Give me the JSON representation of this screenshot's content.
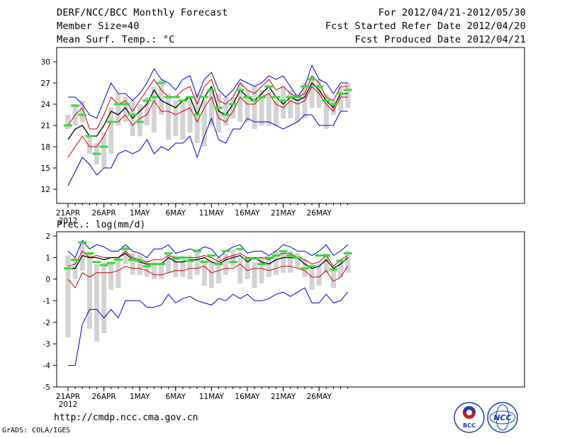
{
  "header": {
    "title": "DERF/NCC/BCC Monthly Forecast",
    "member_size": "Member Size=40",
    "variable": "Mean Surf. Temp.: °C",
    "forecast_period": "For 2012/04/21-2012/05/30",
    "start_date": "Fcst Started Refer Date 2012/04/20",
    "produced_date": "Fcst Produced Date 2012/04/21"
  },
  "footer": {
    "url": "http://cmdp.ncc.cma.gov.cn",
    "credit": "GrADS: COLA/IGES",
    "logo_left": "BCC",
    "logo_right": "NCC"
  },
  "colors": {
    "ensemble_mean": "#000000",
    "std_band": "#cc0000",
    "min_max": "#0000cc",
    "observed_box": "#d3d3d6",
    "member_mark": "#33dd33"
  },
  "chart_data": [
    {
      "type": "line",
      "title": "",
      "ylabel": "Mean Surf. Temp.: °C",
      "ylim": [
        10,
        32
      ],
      "yticks": [
        12,
        15,
        18,
        21,
        24,
        27,
        30
      ],
      "x_day_index": [
        0,
        1,
        2,
        3,
        4,
        5,
        6,
        7,
        8,
        9,
        10,
        11,
        12,
        13,
        14,
        15,
        16,
        17,
        18,
        19,
        20,
        21,
        22,
        23,
        24,
        25,
        26,
        27,
        28,
        29,
        30,
        31,
        32,
        33,
        34,
        35,
        36,
        37,
        38,
        39
      ],
      "xticks": [
        {
          "day": 0,
          "label": "21APR"
        },
        {
          "day": 5,
          "label": "26APR"
        },
        {
          "day": 10,
          "label": "1MAY"
        },
        {
          "day": 15,
          "label": "6MAY"
        },
        {
          "day": 20,
          "label": "11MAY"
        },
        {
          "day": 25,
          "label": "16MAY"
        },
        {
          "day": 30,
          "label": "21MAY"
        },
        {
          "day": 35,
          "label": "26MAY"
        }
      ],
      "year_label": "2012",
      "series": [
        {
          "name": "max",
          "role": "max",
          "values": [
            25,
            25,
            24,
            22.5,
            22,
            24.5,
            27,
            25.5,
            25.5,
            24.5,
            25.5,
            27,
            29,
            27.5,
            27,
            26,
            27.5,
            28,
            25,
            27.5,
            28.5,
            26,
            25,
            26,
            27.5,
            27,
            26.5,
            27,
            28,
            27.5,
            28,
            26.5,
            25,
            26.5,
            29.5,
            27.5,
            27,
            25.5,
            27,
            27
          ]
        },
        {
          "name": "mean+sd",
          "role": "upper",
          "values": [
            21,
            22.5,
            23.5,
            20.5,
            20.5,
            22.5,
            25,
            24,
            24.5,
            23,
            24.5,
            26,
            27.5,
            26,
            25,
            25,
            26,
            26.5,
            24,
            26.5,
            27.5,
            24.5,
            24,
            25,
            27,
            26,
            25.5,
            26.5,
            27.5,
            26,
            26.5,
            25.5,
            25,
            25.5,
            28,
            27,
            25,
            24.5,
            26.5,
            26.5
          ]
        },
        {
          "name": "ensemble mean",
          "role": "mean",
          "values": [
            19,
            20.5,
            21,
            19.5,
            19.5,
            21,
            23,
            22.5,
            23.5,
            22,
            23,
            24,
            26,
            24.5,
            24,
            23.5,
            24.5,
            25,
            22.5,
            25,
            26.5,
            23,
            22.5,
            24,
            26,
            25,
            24.5,
            25.5,
            26.5,
            25,
            24,
            25,
            24.5,
            25,
            27,
            26,
            24.5,
            23.5,
            25.5,
            25.5
          ]
        },
        {
          "name": "mean-sd",
          "role": "lower",
          "values": [
            16.5,
            18,
            19.5,
            18,
            18,
            19.5,
            21.5,
            21.5,
            22.5,
            21,
            22,
            22.5,
            24.5,
            23,
            23,
            22.5,
            23,
            23.5,
            21.5,
            23.5,
            25,
            22,
            21.5,
            23,
            25,
            24,
            24,
            25,
            25.5,
            24,
            23.5,
            24.5,
            24,
            24.5,
            26.5,
            25.5,
            24,
            23,
            25,
            25
          ]
        },
        {
          "name": "min",
          "role": "min",
          "values": [
            12.5,
            14.5,
            16.5,
            15.5,
            14,
            15,
            15,
            17,
            17.5,
            17,
            17.5,
            19,
            17,
            18,
            17.5,
            18.5,
            18.5,
            19.5,
            16.5,
            19.5,
            22,
            19,
            18.5,
            20.5,
            20.5,
            22,
            21.5,
            21.5,
            21.5,
            21,
            20.5,
            21,
            21.5,
            22.5,
            22.5,
            21,
            21,
            21,
            23,
            23
          ]
        }
      ],
      "boxes": [
        {
          "low": 20.5,
          "high": 22.5
        },
        {
          "low": 21,
          "high": 24
        },
        {
          "low": 21.5,
          "high": 24.5
        },
        {
          "low": 17,
          "high": 19.5
        },
        {
          "low": 15.5,
          "high": 18.5
        },
        {
          "low": 15,
          "high": 20
        },
        {
          "low": 17,
          "high": 23.5
        },
        {
          "low": 21,
          "high": 25.5
        },
        {
          "low": 21.5,
          "high": 25
        },
        {
          "low": 19.5,
          "high": 24.5
        },
        {
          "low": 19.5,
          "high": 24
        },
        {
          "low": 21,
          "high": 25
        },
        {
          "low": 20,
          "high": 26.5
        },
        {
          "low": 22.5,
          "high": 27.5
        },
        {
          "low": 19,
          "high": 25.5
        },
        {
          "low": 19.5,
          "high": 24.5
        },
        {
          "low": 19,
          "high": 24.5
        },
        {
          "low": 20,
          "high": 25
        },
        {
          "low": 18.5,
          "high": 25.5
        },
        {
          "low": 18,
          "high": 24.5
        },
        {
          "low": 21,
          "high": 26
        },
        {
          "low": 20,
          "high": 25.5
        },
        {
          "low": 21,
          "high": 25
        },
        {
          "low": 22,
          "high": 25
        },
        {
          "low": 21.5,
          "high": 27
        },
        {
          "low": 21.5,
          "high": 26
        },
        {
          "low": 20.5,
          "high": 26.5
        },
        {
          "low": 21,
          "high": 26
        },
        {
          "low": 21,
          "high": 26
        },
        {
          "low": 21,
          "high": 24.5
        },
        {
          "low": 22,
          "high": 26.5
        },
        {
          "low": 22,
          "high": 26
        },
        {
          "low": 21.5,
          "high": 25.5
        },
        {
          "low": 22,
          "high": 27
        },
        {
          "low": 23.5,
          "high": 28
        },
        {
          "low": 23.5,
          "high": 27.5
        },
        {
          "low": 20.5,
          "high": 25.5
        },
        {
          "low": 22.5,
          "high": 24.5
        },
        {
          "low": 23,
          "high": 26.5
        },
        {
          "low": 23.5,
          "high": 27
        }
      ],
      "marks": [
        21,
        23.8,
        22.5,
        19.5,
        17,
        18,
        21.5,
        24,
        24,
        22.5,
        21.5,
        24.5,
        25,
        27,
        25,
        25,
        24.5,
        25,
        22.5,
        25,
        26,
        23.5,
        22.5,
        24,
        26,
        25,
        24.5,
        25,
        26.5,
        25,
        24.5,
        25,
        25,
        26.5,
        27.5,
        26.5,
        24.5,
        24,
        25.5,
        26
      ]
    },
    {
      "type": "line",
      "title": "",
      "ylabel": "Prec.: log(mm/d)",
      "ylim": [
        -5,
        2.2
      ],
      "yticks": [
        -5,
        -4,
        -3,
        -2,
        -1,
        0,
        1,
        2
      ],
      "x_day_index": [
        0,
        1,
        2,
        3,
        4,
        5,
        6,
        7,
        8,
        9,
        10,
        11,
        12,
        13,
        14,
        15,
        16,
        17,
        18,
        19,
        20,
        21,
        22,
        23,
        24,
        25,
        26,
        27,
        28,
        29,
        30,
        31,
        32,
        33,
        34,
        35,
        36,
        37,
        38,
        39
      ],
      "xticks": [
        {
          "day": 0,
          "label": "21APR"
        },
        {
          "day": 5,
          "label": "26APR"
        },
        {
          "day": 10,
          "label": "1MAY"
        },
        {
          "day": 15,
          "label": "6MAY"
        },
        {
          "day": 20,
          "label": "11MAY"
        },
        {
          "day": 25,
          "label": "16MAY"
        },
        {
          "day": 30,
          "label": "21MAY"
        },
        {
          "day": 35,
          "label": "26MAY"
        }
      ],
      "year_label": "2012",
      "series": [
        {
          "name": "max",
          "role": "max",
          "values": [
            1.3,
            1,
            1.8,
            1.4,
            1.6,
            1.5,
            1.3,
            1.3,
            1.6,
            1.3,
            1.2,
            1,
            1.4,
            1.4,
            1.6,
            1.2,
            1.3,
            1.4,
            1.3,
            1.5,
            1.4,
            1,
            1.3,
            1.5,
            1.6,
            1.2,
            1.3,
            1.3,
            1.1,
            1.3,
            1.6,
            1.5,
            1.3,
            1.3,
            1.1,
            1.3,
            1.6,
            1.1,
            1.3,
            1.6
          ]
        },
        {
          "name": "mean+sd",
          "role": "upper",
          "values": [
            0.6,
            0.7,
            1.3,
            1,
            1.1,
            1,
            1,
            1,
            1.3,
            1,
            0.9,
            0.8,
            0.9,
            0.9,
            1.1,
            1,
            1,
            1,
            1,
            1.1,
            1,
            0.8,
            1,
            1.1,
            1.2,
            1,
            1,
            1,
            0.9,
            1.1,
            1.2,
            1.2,
            1,
            0.9,
            0.7,
            0.8,
            1.1,
            0.6,
            0.9,
            1.1
          ]
        },
        {
          "name": "ensemble mean",
          "role": "mean",
          "values": [
            0.5,
            0.5,
            1.1,
            1,
            1,
            0.9,
            1,
            1,
            1.2,
            0.9,
            0.8,
            0.7,
            0.7,
            0.7,
            1,
            0.8,
            0.8,
            0.9,
            0.9,
            1,
            0.8,
            0.7,
            0.9,
            1,
            1.1,
            0.8,
            1,
            0.8,
            0.7,
            0.9,
            1,
            1,
            1,
            0.7,
            0.5,
            0.6,
            0.9,
            0.5,
            0.7,
            1
          ]
        },
        {
          "name": "mean-sd",
          "role": "lower",
          "values": [
            0,
            -0.4,
            0.3,
            0.1,
            0.3,
            0.3,
            0.3,
            0.4,
            0.6,
            0.5,
            0.5,
            0.4,
            0.2,
            0.2,
            0.3,
            0.4,
            0.4,
            0.5,
            0.5,
            0.6,
            0.3,
            0.4,
            0.5,
            0.5,
            0.7,
            0.4,
            0.5,
            0.5,
            0.4,
            0.5,
            0.6,
            0.6,
            0.5,
            0.4,
            0.1,
            0.1,
            0.4,
            -0.1,
            0.1,
            0.6
          ]
        },
        {
          "name": "min",
          "role": "min",
          "values": [
            -4,
            -4,
            -2.1,
            -1.4,
            -1.4,
            -1.8,
            -1.4,
            -1.8,
            -1,
            -1,
            -1,
            -1.3,
            -1.3,
            -1.2,
            -0.7,
            -1.1,
            -0.9,
            -0.8,
            -1,
            -1.1,
            -1.2,
            -0.9,
            -1,
            -0.7,
            -0.9,
            -0.7,
            -1,
            -1,
            -0.9,
            -0.7,
            -0.6,
            -0.8,
            -0.6,
            -0.4,
            -1.1,
            -1.1,
            -0.7,
            -1.1,
            -1,
            -0.6
          ]
        }
      ],
      "boxes": [
        {
          "low": -2.7,
          "high": 1.1
        },
        {
          "low": 0,
          "high": 1
        },
        {
          "low": 0.4,
          "high": 1.7
        },
        {
          "low": -2.3,
          "high": 1.2
        },
        {
          "low": -2.9,
          "high": 0.7
        },
        {
          "low": -2.5,
          "high": 0.8
        },
        {
          "low": -0.5,
          "high": 0.8
        },
        {
          "low": -0.4,
          "high": 1
        },
        {
          "low": 0.7,
          "high": 1.5
        },
        {
          "low": 0.2,
          "high": 1.2
        },
        {
          "low": 0.2,
          "high": 1.1
        },
        {
          "low": 0.1,
          "high": 0.9
        },
        {
          "low": 0,
          "high": 0.8
        },
        {
          "low": 0,
          "high": 0.8
        },
        {
          "low": 0.3,
          "high": 1.2
        },
        {
          "low": 0.1,
          "high": 1.1
        },
        {
          "low": 0.1,
          "high": 1.1
        },
        {
          "low": 0,
          "high": 1.1
        },
        {
          "low": 0.2,
          "high": 1.4
        },
        {
          "low": -0.3,
          "high": 0.9
        },
        {
          "low": -0.4,
          "high": 0.8
        },
        {
          "low": -0.2,
          "high": 1
        },
        {
          "low": 0.2,
          "high": 1.2
        },
        {
          "low": 0.6,
          "high": 1.4
        },
        {
          "low": -0.2,
          "high": 1
        },
        {
          "low": 0,
          "high": 1
        },
        {
          "low": -0.4,
          "high": 0.8
        },
        {
          "low": -0.2,
          "high": 1
        },
        {
          "low": 0.1,
          "high": 1
        },
        {
          "low": 0.2,
          "high": 1.3
        },
        {
          "low": 0.3,
          "high": 1.3
        },
        {
          "low": 0.3,
          "high": 1.3
        },
        {
          "low": 0.5,
          "high": 1.2
        },
        {
          "low": 0.1,
          "high": 0.9
        },
        {
          "low": -0.5,
          "high": 0.6
        },
        {
          "low": -0.3,
          "high": 0.7
        },
        {
          "low": 0.3,
          "high": 1.2
        },
        {
          "low": -0.4,
          "high": 0.5
        },
        {
          "low": 0.1,
          "high": 0.9
        },
        {
          "low": 0.3,
          "high": 1.3
        }
      ],
      "marks": [
        0.5,
        0.9,
        1.7,
        1.2,
        0.8,
        0.65,
        0.75,
        0.9,
        1.4,
        0.9,
        0.85,
        0.6,
        0.7,
        0.7,
        1.2,
        0.95,
        1,
        0.85,
        1.3,
        0.8,
        1.1,
        0.7,
        1.3,
        0.8,
        1.4,
        0.95,
        0.95,
        0.7,
        1,
        1.1,
        1.3,
        1.1,
        1,
        0.5,
        0.6,
        1.1,
        1.1,
        0.45,
        0.85,
        1.2
      ]
    }
  ]
}
